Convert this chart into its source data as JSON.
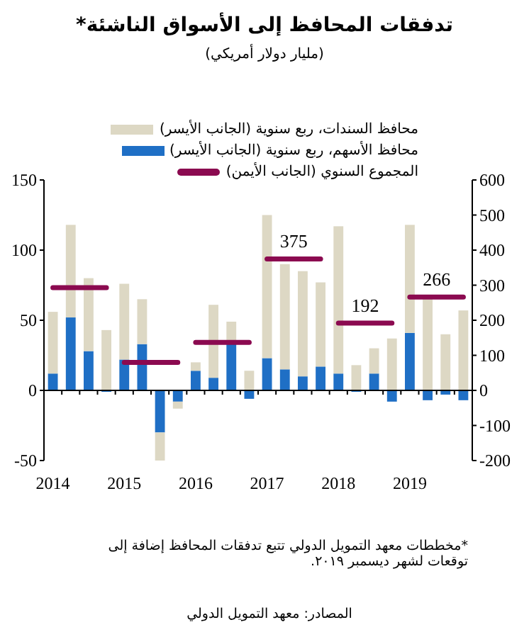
{
  "chart_data": {
    "type": "bar",
    "title": "تدفقات المحافظ إلى الأسواق الناشئة*",
    "subtitle": "(مليار دولار أمريكي)",
    "categories": [
      "2014",
      null,
      null,
      null,
      "2015",
      null,
      null,
      null,
      "2016",
      null,
      null,
      null,
      "2017",
      null,
      null,
      null,
      "2018",
      null,
      null,
      null,
      "2019",
      null,
      null,
      null
    ],
    "stacked": true,
    "series": [
      {
        "name": "محافظ الأسهم، ربع سنوية (الجانب الأيسر)",
        "color": "#1f6fc5",
        "values": [
          12,
          52,
          28,
          -1,
          22,
          33,
          -30,
          -8,
          14,
          9,
          33,
          -6,
          23,
          15,
          10,
          17,
          12,
          -1,
          12,
          -8,
          41,
          -7,
          -3,
          -7
        ]
      },
      {
        "name": "محافظ السندات، ربع سنوية (الجانب الأيسر)",
        "color": "#ddd8c4",
        "values": [
          44,
          66,
          52,
          43,
          54,
          32,
          -20,
          -5,
          6,
          52,
          16,
          14,
          102,
          75,
          75,
          60,
          105,
          18,
          18,
          37,
          77,
          66,
          40,
          57
        ]
      },
      {
        "name": "المجموع السنوي (الجانب الأيمن)",
        "type": "line",
        "axis": "y2",
        "color": "#8b0a50",
        "values": [
          293,
          293,
          293,
          293,
          80,
          80,
          80,
          80,
          137,
          137,
          137,
          137,
          375,
          375,
          375,
          375,
          192,
          192,
          192,
          192,
          266,
          266,
          266,
          266
        ],
        "value_labels": [
          null,
          null,
          null,
          null,
          null,
          null,
          null,
          null,
          null,
          null,
          null,
          null,
          null,
          "375",
          null,
          null,
          null,
          "192",
          null,
          null,
          null,
          "266",
          null,
          null
        ]
      }
    ],
    "ylim": [
      -50,
      150
    ],
    "yticks": [
      -50,
      0,
      50,
      100,
      150
    ],
    "y2lim": [
      -200,
      600
    ],
    "y2ticks": [
      -200,
      -100,
      0,
      100,
      200,
      300,
      400,
      500,
      600
    ],
    "legend": "top",
    "annotations": [
      "*مخططات معهد التمويل الدولي تتبع تدفقات المحافظ إضافة إلى توقعات لشهر ديسمبر ٢٠١٩.",
      "المصادر: معهد التمويل الدولي"
    ]
  }
}
